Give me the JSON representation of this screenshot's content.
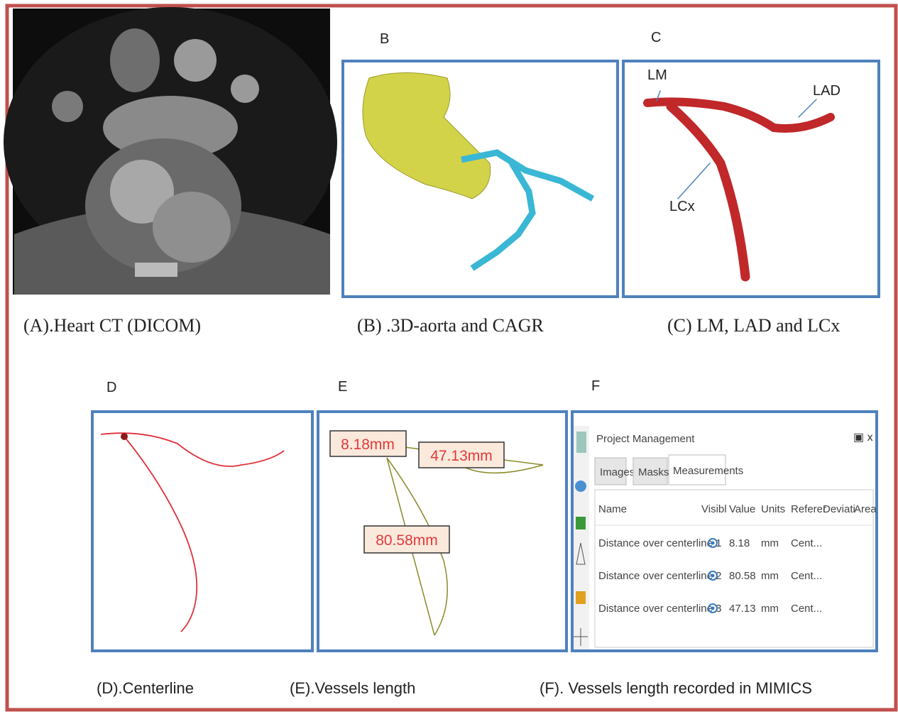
{
  "panels": {
    "a": {
      "caption": "(A).Heart CT (DICOM)"
    },
    "b": {
      "letter": "B",
      "caption": "(B) .3D-aorta and CAGR"
    },
    "c": {
      "letter": "C",
      "caption": "(C) LM, LAD and LCx",
      "labels": [
        "LM",
        "LAD",
        "LCx"
      ]
    },
    "d": {
      "letter": "D",
      "caption": "(D).Centerline"
    },
    "e": {
      "letter": "E",
      "caption": "(E).Vessels length",
      "measurements": [
        "8.18mm",
        "47.13mm",
        "80.58mm"
      ]
    },
    "f": {
      "letter": "F",
      "caption": "(F). Vessels length recorded in MIMICS",
      "window_title": "Project Management",
      "tabs": [
        "Images",
        "Masks",
        "Measurements"
      ],
      "columns": [
        "Name",
        "Visibl",
        "Value",
        "Units",
        "Referer",
        "Deviati",
        "Area"
      ],
      "rows": [
        [
          "Distance over centerline 1",
          8.18,
          "mm",
          "Cent..."
        ],
        [
          "Distance over centerline 2",
          80.58,
          "mm",
          "Cent..."
        ],
        [
          "Distance over centerline 3",
          47.13,
          "mm",
          "Cent..."
        ]
      ]
    }
  }
}
